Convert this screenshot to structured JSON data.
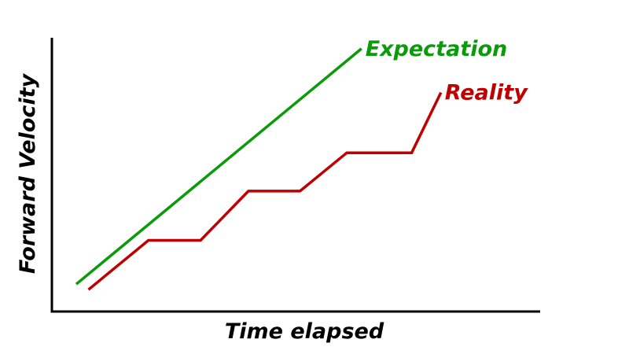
{
  "chart_data": {
    "type": "line",
    "title": "",
    "xlabel": "Time elapsed",
    "ylabel": "Forward Velocity",
    "xlim": [
      0,
      100
    ],
    "ylim": [
      0,
      100
    ],
    "ticks_shown": false,
    "grid": false,
    "series": [
      {
        "name": "Expectation",
        "color": "#0a9a0a",
        "x": [
          5,
          63.5
        ],
        "y": [
          10,
          96
        ]
      },
      {
        "name": "Reality",
        "color": "#c00000",
        "x": [
          7.5,
          19.8,
          30.5,
          40.3,
          50.9,
          60.5,
          73.8,
          79.8
        ],
        "y": [
          8,
          26,
          26,
          44,
          44,
          58,
          58,
          80
        ]
      }
    ]
  }
}
